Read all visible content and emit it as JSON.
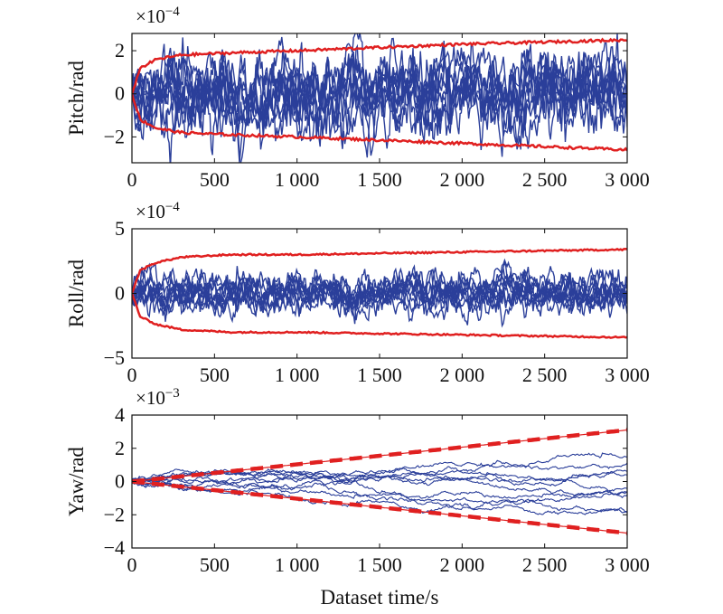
{
  "xlabel": "Dataset time/s",
  "chart_data": [
    {
      "type": "line",
      "ylabel": "Pitch/rad",
      "exponent_base": "×10",
      "exponent_power": "−4",
      "xlim": [
        0,
        3000
      ],
      "ylim": [
        -3.2,
        2.8
      ],
      "x_ticks": [
        0,
        500,
        1000,
        1500,
        2000,
        2500,
        3000
      ],
      "x_tick_labels": [
        "0",
        "500",
        "1 000",
        "1 500",
        "2 000",
        "2 500",
        "3 000"
      ],
      "y_ticks": [
        -2,
        0,
        2
      ],
      "y_tick_labels": [
        "−2",
        "0",
        "2"
      ],
      "bound": {
        "x": [
          0,
          50,
          150,
          300,
          600,
          1000,
          1500,
          2000,
          2500,
          3000
        ],
        "upper": [
          0,
          1.2,
          1.6,
          1.8,
          1.9,
          2.0,
          2.15,
          2.3,
          2.4,
          2.5
        ],
        "lower": [
          0,
          -1.2,
          -1.6,
          -1.8,
          -1.9,
          -2.0,
          -2.15,
          -2.3,
          -2.45,
          -2.6
        ],
        "color": "#e02020"
      },
      "trajectories": {
        "count": 10,
        "x": [
          0,
          3000
        ],
        "amplitude": 0.9,
        "color": "#2b3f9a"
      }
    },
    {
      "type": "line",
      "ylabel": "Roll/rad",
      "exponent_base": "×10",
      "exponent_power": "−4",
      "xlim": [
        0,
        3000
      ],
      "ylim": [
        -5,
        5
      ],
      "x_ticks": [
        0,
        500,
        1000,
        1500,
        2000,
        2500,
        3000
      ],
      "x_tick_labels": [
        "0",
        "500",
        "1 000",
        "1 500",
        "2 000",
        "2 500",
        "3 000"
      ],
      "y_ticks": [
        -5,
        0,
        5
      ],
      "y_tick_labels": [
        "−5",
        "0",
        "5"
      ],
      "bound": {
        "x": [
          0,
          50,
          150,
          300,
          600,
          1000,
          1500,
          2000,
          2500,
          3000
        ],
        "upper": [
          0,
          1.8,
          2.4,
          2.8,
          3.0,
          3.0,
          3.1,
          3.2,
          3.3,
          3.4
        ],
        "lower": [
          0,
          -1.8,
          -2.4,
          -2.8,
          -3.0,
          -3.0,
          -3.1,
          -3.2,
          -3.3,
          -3.4
        ],
        "color": "#e02020"
      },
      "trajectories": {
        "count": 10,
        "x": [
          0,
          3000
        ],
        "amplitude": 0.75,
        "color": "#2b3f9a"
      }
    },
    {
      "type": "line",
      "ylabel": "Yaw/rad",
      "exponent_base": "×10",
      "exponent_power": "−3",
      "xlim": [
        0,
        3000
      ],
      "ylim": [
        -4,
        4
      ],
      "x_ticks": [
        0,
        500,
        1000,
        1500,
        2000,
        2500,
        3000
      ],
      "x_tick_labels": [
        "0",
        "500",
        "1 000",
        "1 500",
        "2 000",
        "2 500",
        "3 000"
      ],
      "y_ticks": [
        -4,
        -2,
        0,
        2,
        4
      ],
      "y_tick_labels": [
        "−4",
        "−2",
        "0",
        "2",
        "4"
      ],
      "bound": {
        "x": [
          0,
          3000
        ],
        "upper": [
          0,
          3.1
        ],
        "lower": [
          0,
          -3.1
        ],
        "color": "#e02020"
      },
      "trajectories": {
        "count": 10,
        "x": [
          0,
          3000
        ],
        "amplitude": 0.35,
        "color": "#2b3f9a"
      }
    }
  ]
}
